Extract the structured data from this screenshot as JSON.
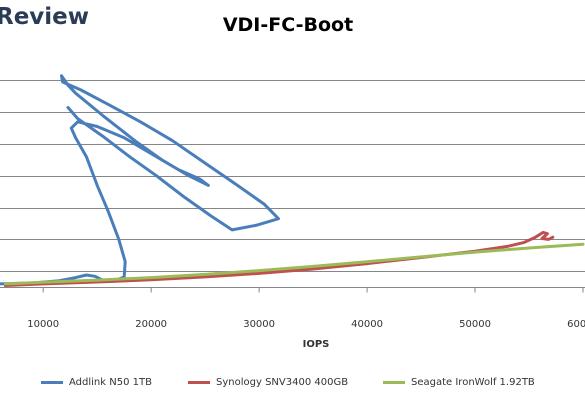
{
  "brand": {
    "text": "Review"
  },
  "chart_data": {
    "type": "line",
    "title": "VDI-FC-Boot",
    "xlabel": "IOPS",
    "ylabel": "",
    "xlim": [
      6000,
      60000
    ],
    "ylim": [
      0,
      7.8
    ],
    "x_ticks": [
      10000,
      20000,
      30000,
      40000,
      50000,
      60000
    ],
    "x_tick_labels": [
      "10000",
      "20000",
      "30000",
      "40000",
      "50000",
      "60000"
    ],
    "y_gridlines": [
      0.5,
      1,
      2,
      3,
      4,
      5,
      6,
      7
    ],
    "grid": true,
    "legend_position": "bottom",
    "series": [
      {
        "name": "Addlink N50 1TB",
        "color": "#4a7ebb",
        "points": [
          [
            6000,
            0.6
          ],
          [
            9000,
            0.63
          ],
          [
            11500,
            0.7
          ],
          [
            13000,
            0.8
          ],
          [
            14000,
            0.88
          ],
          [
            14800,
            0.84
          ],
          [
            15500,
            0.72
          ],
          [
            16500,
            0.68
          ],
          [
            17500,
            0.82
          ],
          [
            17600,
            1.3
          ],
          [
            17000,
            2.0
          ],
          [
            16000,
            2.9
          ],
          [
            15000,
            3.7
          ],
          [
            14000,
            4.6
          ],
          [
            13000,
            5.2
          ],
          [
            12600,
            5.5
          ],
          [
            13200,
            5.7
          ],
          [
            15000,
            5.55
          ],
          [
            17500,
            5.2
          ],
          [
            20000,
            4.7
          ],
          [
            22500,
            4.2
          ],
          [
            24500,
            3.9
          ],
          [
            25300,
            3.7
          ],
          [
            23500,
            4.0
          ],
          [
            21000,
            4.5
          ],
          [
            18500,
            5.1
          ],
          [
            15500,
            5.9
          ],
          [
            13000,
            6.6
          ],
          [
            12300,
            6.85
          ],
          [
            11700,
            7.15
          ],
          [
            11800,
            6.95
          ],
          [
            13500,
            6.7
          ],
          [
            16000,
            6.25
          ],
          [
            19000,
            5.7
          ],
          [
            22000,
            5.1
          ],
          [
            25000,
            4.4
          ],
          [
            28000,
            3.7
          ],
          [
            30500,
            3.1
          ],
          [
            31800,
            2.65
          ],
          [
            29800,
            2.45
          ],
          [
            27500,
            2.3
          ],
          [
            25500,
            2.75
          ],
          [
            23000,
            3.35
          ],
          [
            20500,
            4.0
          ],
          [
            18000,
            4.6
          ],
          [
            15500,
            5.25
          ],
          [
            13200,
            5.8
          ],
          [
            12300,
            6.15
          ]
        ]
      },
      {
        "name": "Synology SNV3400 400GB",
        "color": "#c0504d",
        "points": [
          [
            6500,
            0.55
          ],
          [
            10000,
            0.6
          ],
          [
            15000,
            0.66
          ],
          [
            20000,
            0.73
          ],
          [
            25000,
            0.82
          ],
          [
            30000,
            0.93
          ],
          [
            35000,
            1.07
          ],
          [
            40000,
            1.24
          ],
          [
            45000,
            1.43
          ],
          [
            50000,
            1.63
          ],
          [
            53000,
            1.78
          ],
          [
            54500,
            1.9
          ],
          [
            55500,
            2.05
          ],
          [
            56300,
            2.22
          ],
          [
            56700,
            2.18
          ],
          [
            56200,
            2.03
          ],
          [
            56800,
            2.0
          ],
          [
            57200,
            2.07
          ]
        ]
      },
      {
        "name": "Seagate IronWolf 1.92TB",
        "color": "#9bbb59",
        "points": [
          [
            6500,
            0.6
          ],
          [
            10000,
            0.65
          ],
          [
            15000,
            0.72
          ],
          [
            20000,
            0.8
          ],
          [
            25000,
            0.9
          ],
          [
            30000,
            1.02
          ],
          [
            35000,
            1.15
          ],
          [
            40000,
            1.3
          ],
          [
            45000,
            1.45
          ],
          [
            50000,
            1.6
          ],
          [
            55000,
            1.73
          ],
          [
            60000,
            1.85
          ]
        ]
      }
    ]
  }
}
